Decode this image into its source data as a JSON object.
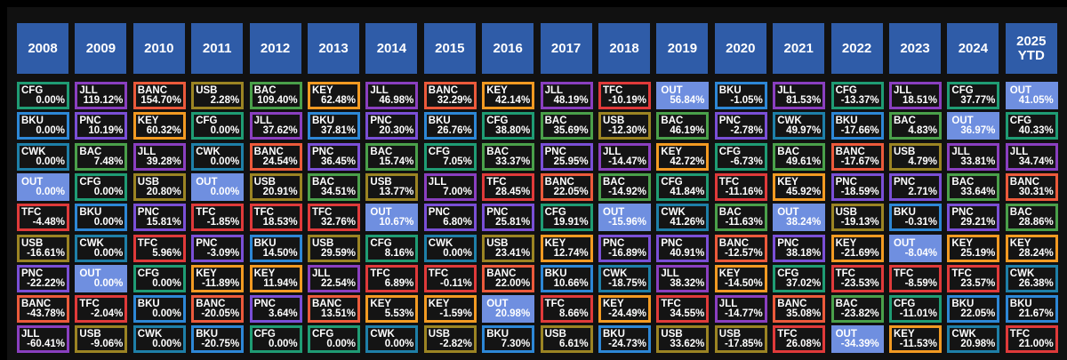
{
  "chart_data": {
    "type": "table",
    "title": "",
    "years": [
      "2008",
      "2009",
      "2010",
      "2011",
      "2012",
      "2013",
      "2014",
      "2015",
      "2016",
      "2017",
      "2018",
      "2019",
      "2020",
      "2021",
      "2022",
      "2023",
      "2024",
      "2025\nYTD"
    ],
    "columns": [
      [
        [
          "CFG",
          "0.00%"
        ],
        [
          "BKU",
          "0.00%"
        ],
        [
          "CWK",
          "0.00%"
        ],
        [
          "OUT",
          "0.00%"
        ],
        [
          "TFC",
          "-4.48%"
        ],
        [
          "USB",
          "-16.61%"
        ],
        [
          "PNC",
          "-22.22%"
        ],
        [
          "BANC",
          "-43.78%"
        ],
        [
          "JLL",
          "-60.41%"
        ]
      ],
      [
        [
          "JLL",
          "119.12%"
        ],
        [
          "PNC",
          "10.19%"
        ],
        [
          "BAC",
          "7.48%"
        ],
        [
          "CFG",
          "0.00%"
        ],
        [
          "BKU",
          "0.00%"
        ],
        [
          "CWK",
          "0.00%"
        ],
        [
          "OUT",
          "0.00%"
        ],
        [
          "TFC",
          "-2.04%"
        ],
        [
          "USB",
          "-9.06%"
        ]
      ],
      [
        [
          "BANC",
          "154.70%"
        ],
        [
          "KEY",
          "60.32%"
        ],
        [
          "JLL",
          "39.28%"
        ],
        [
          "USB",
          "20.80%"
        ],
        [
          "PNC",
          "15.81%"
        ],
        [
          "TFC",
          "5.96%"
        ],
        [
          "CFG",
          "0.00%"
        ],
        [
          "BKU",
          "0.00%"
        ],
        [
          "CWK",
          "0.00%"
        ]
      ],
      [
        [
          "USB",
          "2.28%"
        ],
        [
          "CFG",
          "0.00%"
        ],
        [
          "CWK",
          "0.00%"
        ],
        [
          "OUT",
          "0.00%"
        ],
        [
          "TFC",
          "-1.85%"
        ],
        [
          "PNC",
          "-3.09%"
        ],
        [
          "KEY",
          "-11.89%"
        ],
        [
          "BANC",
          "-20.05%"
        ],
        [
          "BKU",
          "-20.75%"
        ]
      ],
      [
        [
          "BAC",
          "109.40%"
        ],
        [
          "JLL",
          "37.62%"
        ],
        [
          "BANC",
          "24.54%"
        ],
        [
          "USB",
          "20.91%"
        ],
        [
          "TFC",
          "18.53%"
        ],
        [
          "BKU",
          "14.50%"
        ],
        [
          "KEY",
          "11.94%"
        ],
        [
          "PNC",
          "3.64%"
        ],
        [
          "CFG",
          "0.00%"
        ]
      ],
      [
        [
          "KEY",
          "62.48%"
        ],
        [
          "BKU",
          "37.81%"
        ],
        [
          "PNC",
          "36.45%"
        ],
        [
          "BAC",
          "34.51%"
        ],
        [
          "TFC",
          "32.76%"
        ],
        [
          "USB",
          "29.59%"
        ],
        [
          "JLL",
          "22.54%"
        ],
        [
          "BANC",
          "13.51%"
        ],
        [
          "CFG",
          "0.00%"
        ]
      ],
      [
        [
          "JLL",
          "46.98%"
        ],
        [
          "PNC",
          "20.30%"
        ],
        [
          "BAC",
          "15.74%"
        ],
        [
          "USB",
          "13.77%"
        ],
        [
          "OUT",
          "10.67%"
        ],
        [
          "CFG",
          "8.16%"
        ],
        [
          "TFC",
          "6.89%"
        ],
        [
          "KEY",
          "5.53%"
        ],
        [
          "CWK",
          "0.00%"
        ]
      ],
      [
        [
          "BANC",
          "32.29%"
        ],
        [
          "BKU",
          "26.76%"
        ],
        [
          "CFG",
          "7.05%"
        ],
        [
          "JLL",
          "7.00%"
        ],
        [
          "PNC",
          "6.80%"
        ],
        [
          "CWK",
          "0.00%"
        ],
        [
          "TFC",
          "-0.11%"
        ],
        [
          "KEY",
          "-1.59%"
        ],
        [
          "USB",
          "-2.82%"
        ]
      ],
      [
        [
          "KEY",
          "42.14%"
        ],
        [
          "CFG",
          "38.80%"
        ],
        [
          "BAC",
          "33.37%"
        ],
        [
          "TFC",
          "28.45%"
        ],
        [
          "PNC",
          "25.81%"
        ],
        [
          "USB",
          "23.41%"
        ],
        [
          "BANC",
          "22.00%"
        ],
        [
          "OUT",
          "20.98%"
        ],
        [
          "BKU",
          "7.30%"
        ]
      ],
      [
        [
          "JLL",
          "48.19%"
        ],
        [
          "BAC",
          "35.69%"
        ],
        [
          "PNC",
          "25.95%"
        ],
        [
          "BANC",
          "22.05%"
        ],
        [
          "CFG",
          "19.91%"
        ],
        [
          "KEY",
          "12.74%"
        ],
        [
          "BKU",
          "10.66%"
        ],
        [
          "TFC",
          "8.66%"
        ],
        [
          "USB",
          "6.61%"
        ]
      ],
      [
        [
          "TFC",
          "-10.19%"
        ],
        [
          "USB",
          "-12.30%"
        ],
        [
          "JLL",
          "-14.47%"
        ],
        [
          "BAC",
          "-14.92%"
        ],
        [
          "OUT",
          "-15.96%"
        ],
        [
          "PNC",
          "-16.89%"
        ],
        [
          "CWK",
          "-18.75%"
        ],
        [
          "KEY",
          "-24.49%"
        ],
        [
          "BKU",
          "-24.73%"
        ]
      ],
      [
        [
          "OUT",
          "56.84%"
        ],
        [
          "BAC",
          "46.19%"
        ],
        [
          "KEY",
          "42.72%"
        ],
        [
          "CFG",
          "41.84%"
        ],
        [
          "CWK",
          "41.26%"
        ],
        [
          "PNC",
          "40.91%"
        ],
        [
          "JLL",
          "38.32%"
        ],
        [
          "TFC",
          "34.55%"
        ],
        [
          "USB",
          "33.62%"
        ]
      ],
      [
        [
          "BKU",
          "-1.05%"
        ],
        [
          "PNC",
          "-2.78%"
        ],
        [
          "CFG",
          "-6.73%"
        ],
        [
          "TFC",
          "-11.16%"
        ],
        [
          "BAC",
          "-11.63%"
        ],
        [
          "BANC",
          "-12.57%"
        ],
        [
          "KEY",
          "-14.50%"
        ],
        [
          "JLL",
          "-14.77%"
        ],
        [
          "USB",
          "-17.85%"
        ]
      ],
      [
        [
          "JLL",
          "81.53%"
        ],
        [
          "CWK",
          "49.97%"
        ],
        [
          "BAC",
          "49.61%"
        ],
        [
          "KEY",
          "45.92%"
        ],
        [
          "OUT",
          "38.24%"
        ],
        [
          "PNC",
          "38.18%"
        ],
        [
          "CFG",
          "37.02%"
        ],
        [
          "BANC",
          "35.08%"
        ],
        [
          "TFC",
          "26.08%"
        ]
      ],
      [
        [
          "CFG",
          "-13.37%"
        ],
        [
          "BKU",
          "-17.66%"
        ],
        [
          "BANC",
          "-17.67%"
        ],
        [
          "PNC",
          "-18.59%"
        ],
        [
          "USB",
          "-19.13%"
        ],
        [
          "KEY",
          "-21.69%"
        ],
        [
          "TFC",
          "-23.53%"
        ],
        [
          "BAC",
          "-23.82%"
        ],
        [
          "OUT",
          "-34.39%"
        ]
      ],
      [
        [
          "JLL",
          "18.51%"
        ],
        [
          "BAC",
          "4.83%"
        ],
        [
          "USB",
          "4.79%"
        ],
        [
          "PNC",
          "2.71%"
        ],
        [
          "BKU",
          "-0.31%"
        ],
        [
          "OUT",
          "-8.04%"
        ],
        [
          "TFC",
          "-8.59%"
        ],
        [
          "CFG",
          "-11.01%"
        ],
        [
          "KEY",
          "-11.53%"
        ]
      ],
      [
        [
          "CFG",
          "37.77%"
        ],
        [
          "OUT",
          "36.97%"
        ],
        [
          "JLL",
          "33.81%"
        ],
        [
          "BAC",
          "33.64%"
        ],
        [
          "PNC",
          "29.21%"
        ],
        [
          "KEY",
          "25.19%"
        ],
        [
          "TFC",
          "23.57%"
        ],
        [
          "BKU",
          "22.05%"
        ],
        [
          "CWK",
          "20.98%"
        ]
      ],
      [
        [
          "OUT",
          "41.05%"
        ],
        [
          "CFG",
          "40.33%"
        ],
        [
          "JLL",
          "34.74%"
        ],
        [
          "BANC",
          "30.31%"
        ],
        [
          "BAC",
          "28.86%"
        ],
        [
          "KEY",
          "28.24%"
        ],
        [
          "CWK",
          "26.38%"
        ],
        [
          "BKU",
          "21.67%"
        ],
        [
          "TFC",
          "21.00%"
        ]
      ]
    ],
    "ticker_colors": {
      "CFG": "#1f9c74",
      "BKU": "#2d87d6",
      "CWK": "#1e7fa8",
      "OUT": "#6f8fe0",
      "TFC": "#e03a3a",
      "USB": "#9b8423",
      "PNC": "#7a4fd6",
      "BANC": "#ec5a3b",
      "JLL": "#8a3fc0",
      "BAC": "#4aa04a",
      "KEY": "#f29a22"
    },
    "header_color": "#2f5ca8",
    "background": "#111111"
  }
}
